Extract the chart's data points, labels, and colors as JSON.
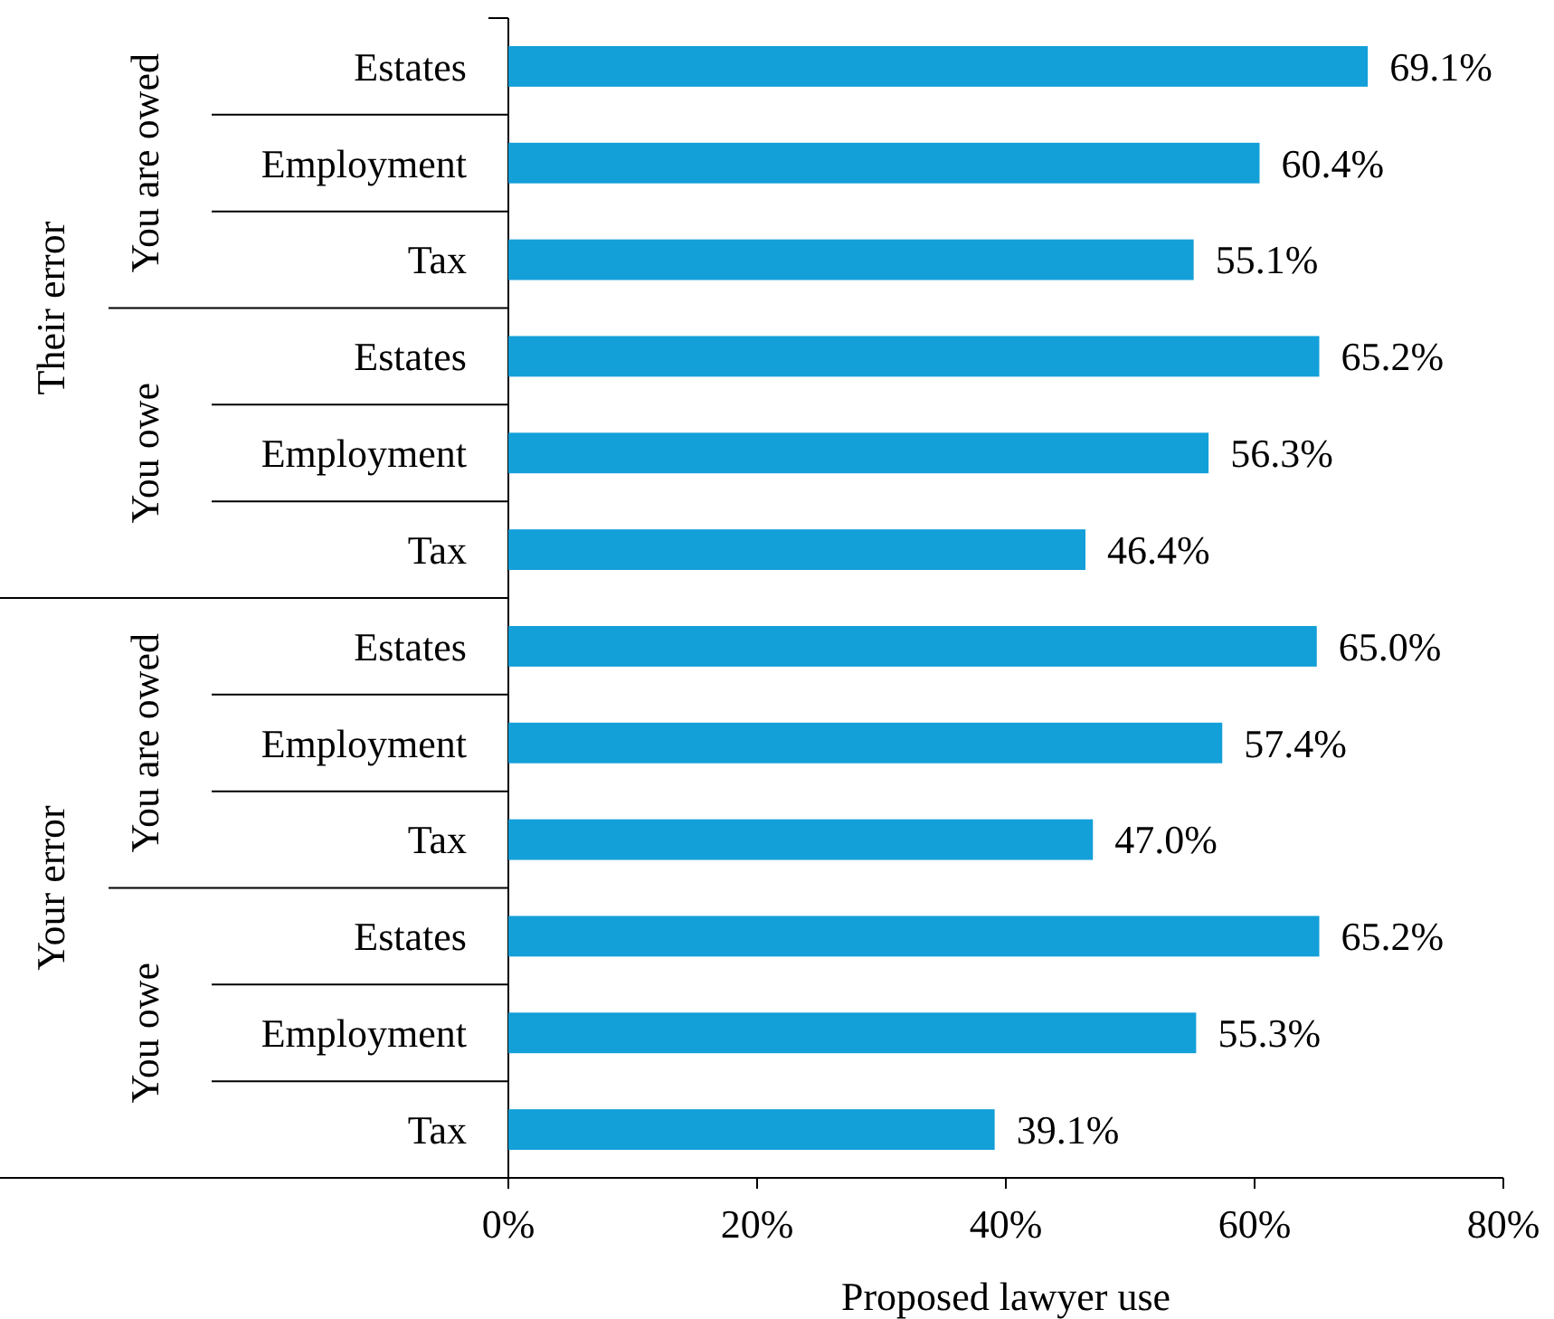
{
  "chart_data": {
    "type": "bar",
    "orientation": "horizontal",
    "xlabel": "Proposed lawyer use",
    "categories": [
      "Estates",
      "Employment",
      "Tax",
      "Estates",
      "Employment",
      "Tax",
      "Estates",
      "Employment",
      "Tax",
      "Estates",
      "Employment",
      "Tax"
    ],
    "values": [
      69.1,
      60.4,
      55.1,
      65.2,
      56.3,
      46.4,
      65.0,
      57.4,
      47.0,
      65.2,
      55.3,
      39.1
    ],
    "value_labels": [
      "69.1%",
      "60.4%",
      "55.1%",
      "65.2%",
      "56.3%",
      "46.4%",
      "65.0%",
      "57.4%",
      "47.0%",
      "65.2%",
      "55.3%",
      "39.1%"
    ],
    "color": "#139fd8",
    "xlim": [
      0,
      80
    ],
    "xticks": [
      {
        "value": 0,
        "label": "0%"
      },
      {
        "value": 20,
        "label": "20%"
      },
      {
        "value": 40,
        "label": "40%"
      },
      {
        "value": 60,
        "label": "60%"
      },
      {
        "value": 80,
        "label": "80%"
      }
    ],
    "annotations": [
      "You are owed",
      "You owe",
      "You are owed",
      "You owe",
      "Their error",
      "Your error"
    ],
    "grid": false
  }
}
